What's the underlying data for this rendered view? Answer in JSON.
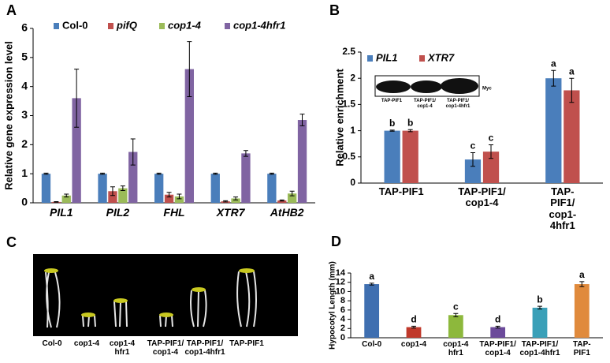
{
  "chart_data": [
    {
      "panel_label": "A",
      "type": "bar",
      "y_label": "Relative gene expression level",
      "categories": [
        "PIL1",
        "PIL2",
        "FHL",
        "XTR7",
        "AtHB2"
      ],
      "series": [
        {
          "name": "Col-0",
          "color": "#4a7ebb",
          "values": [
            1,
            1,
            1,
            1,
            1
          ],
          "errors": [
            0.02,
            0.02,
            0.02,
            0.02,
            0.02
          ]
        },
        {
          "name": "pifQ",
          "color": "#c0504d",
          "values": [
            0.03,
            0.4,
            0.28,
            0.05,
            0.08
          ],
          "errors": [
            0.01,
            0.15,
            0.08,
            0.02,
            0.02
          ]
        },
        {
          "name": "cop1-4",
          "color": "#9bbb59",
          "values": [
            0.25,
            0.5,
            0.22,
            0.15,
            0.32
          ],
          "errors": [
            0.05,
            0.08,
            0.08,
            0.05,
            0.08
          ]
        },
        {
          "name": "cop1-4hfr1",
          "color": "#8064a2",
          "values": [
            3.6,
            1.75,
            4.6,
            1.7,
            2.85
          ],
          "errors": [
            1.0,
            0.45,
            0.95,
            0.1,
            0.2
          ]
        }
      ],
      "ylim": [
        0,
        6
      ],
      "yticks": [
        0,
        1,
        2,
        3,
        4,
        5,
        6
      ]
    },
    {
      "panel_label": "B",
      "type": "bar",
      "y_label": "Relative enrichment",
      "categories": [
        "TAP-PIF1",
        "TAP-PIF1/\ncop1-4",
        "TAP-PIF1/\ncop1-4hfr1"
      ],
      "series": [
        {
          "name": "PIL1",
          "color": "#4a7ebb",
          "values": [
            1,
            0.45,
            2
          ],
          "errors": [
            0.01,
            0.13,
            0.15
          ],
          "labels": [
            "b",
            "c",
            "a"
          ]
        },
        {
          "name": "XTR7",
          "color": "#c0504d",
          "values": [
            1,
            0.6,
            1.77
          ],
          "errors": [
            0.02,
            0.13,
            0.23
          ],
          "labels": [
            "b",
            "c",
            "a"
          ]
        }
      ],
      "ylim": [
        0,
        2.5
      ],
      "yticks": [
        0,
        0.5,
        1,
        1.5,
        2,
        2.5
      ],
      "inset": {
        "label": "Myc",
        "lanes": [
          "TAP-PIF1",
          "TAP-PIF1/\ncop1-4",
          "TAP-PIF1/\ncop1-4hfr1"
        ]
      }
    },
    {
      "panel_label": "D",
      "type": "bar",
      "y_label": "Hypocotyl Length (mm)",
      "categories": [
        "Col-0",
        "cop1-4",
        "cop1-4\nhfr1",
        "TAP-PIF1/\ncop1-4",
        "TAP-PIF1/\ncop1-4hfr1",
        "TAP-PIF1"
      ],
      "values": [
        11.6,
        2.3,
        4.9,
        2.3,
        6.5,
        11.6
      ],
      "errors": [
        0.2,
        0.2,
        0.35,
        0.2,
        0.3,
        0.55
      ],
      "colors": [
        "#3f6fb0",
        "#c0392b",
        "#8db83c",
        "#6b4a9a",
        "#3aa0b8",
        "#e08a3c"
      ],
      "labels": [
        "a",
        "d",
        "c",
        "d",
        "b",
        "a"
      ],
      "ylim": [
        0,
        14
      ],
      "yticks": [
        0,
        2,
        4,
        6,
        8,
        10,
        12,
        14
      ]
    }
  ],
  "photo": {
    "panel_label": "C",
    "labels": [
      "Col-0",
      "cop1-4",
      "cop1-4\nhfr1",
      "TAP-PIF1/\ncop1-4",
      "TAP-PIF1/\ncop1-4hfr1",
      "TAP-PIF1"
    ]
  }
}
